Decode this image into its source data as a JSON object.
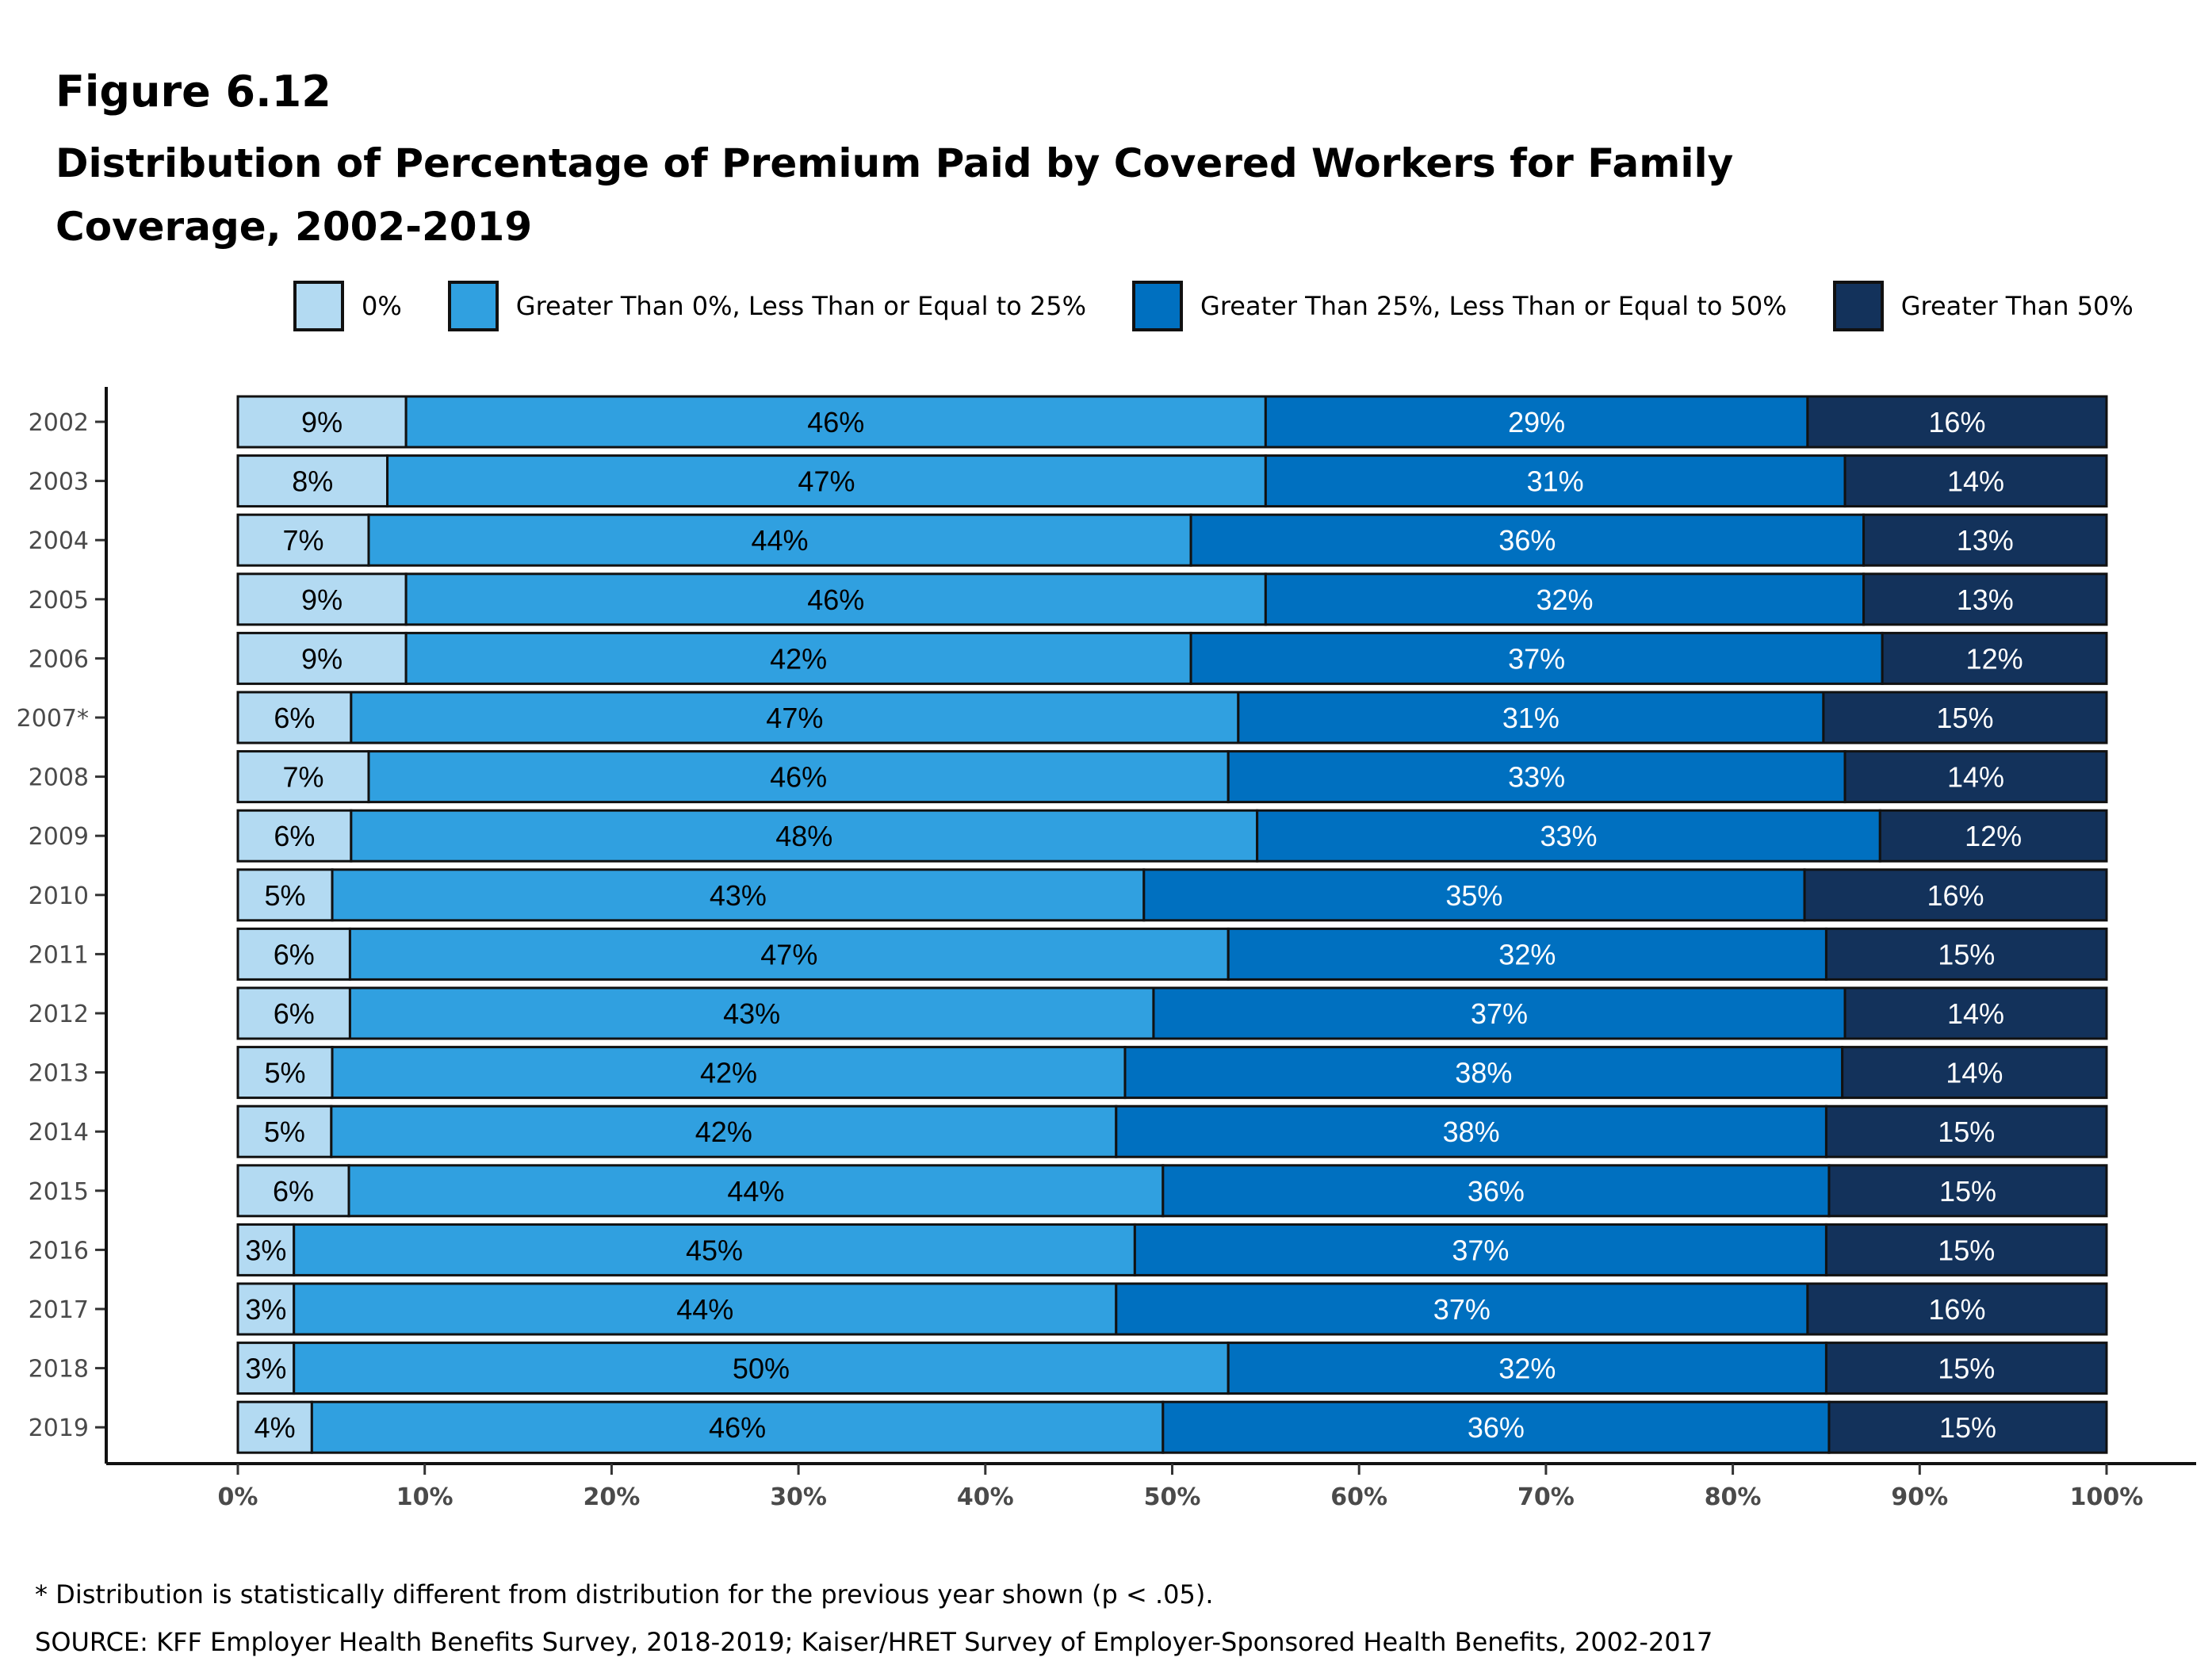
{
  "figure_number": "Figure 6.12",
  "chart_data": {
    "type": "bar",
    "orientation": "horizontal",
    "stacked": true,
    "title": "Distribution of Percentage of Premium Paid by Covered Workers for Family Coverage, 2002-2019",
    "categories": [
      "2002",
      "2003",
      "2004",
      "2005",
      "2006",
      "2007*",
      "2008",
      "2009",
      "2010",
      "2011",
      "2012",
      "2013",
      "2014",
      "2015",
      "2016",
      "2017",
      "2018",
      "2019"
    ],
    "series": [
      {
        "name": "0%",
        "color": "#b3daf2",
        "text_color": "#000000",
        "values": [
          9,
          8,
          7,
          9,
          9,
          6,
          7,
          6,
          5,
          6,
          6,
          5,
          5,
          6,
          3,
          3,
          3,
          4
        ],
        "labels": [
          "9%",
          "8%",
          "7%",
          "9%",
          "9%",
          "6%",
          "7%",
          "6%",
          "5%",
          "6%",
          "6%",
          "5%",
          "5%",
          "6%",
          "3%",
          "3%",
          "3%",
          "4%"
        ]
      },
      {
        "name": "Greater Than 0%, Less Than or Equal to 25%",
        "color": "#30a0e0",
        "text_color": "#000000",
        "values": [
          46,
          47,
          44,
          46,
          42,
          47,
          46,
          48,
          43,
          47,
          43,
          42,
          42,
          44,
          45,
          44,
          50,
          46
        ],
        "labels": [
          "46%",
          "47%",
          "44%",
          "46%",
          "42%",
          "47%",
          "46%",
          "48%",
          "43%",
          "47%",
          "43%",
          "42%",
          "42%",
          "44%",
          "45%",
          "44%",
          "50%",
          "46%"
        ]
      },
      {
        "name": "Greater Than 25%, Less Than or Equal to 50%",
        "color": "#0070c0",
        "text_color": "#ffffff",
        "values": [
          29,
          31,
          36,
          32,
          37,
          31,
          33,
          33,
          35,
          32,
          37,
          38,
          38,
          36,
          37,
          37,
          32,
          36
        ],
        "labels": [
          "29%",
          "31%",
          "36%",
          "32%",
          "37%",
          "31%",
          "33%",
          "33%",
          "35%",
          "32%",
          "37%",
          "38%",
          "38%",
          "36%",
          "37%",
          "37%",
          "32%",
          "36%"
        ]
      },
      {
        "name": "Greater Than 50%",
        "color": "#13325b",
        "text_color": "#ffffff",
        "values": [
          16,
          14,
          13,
          13,
          12,
          15,
          14,
          12,
          16,
          15,
          14,
          14,
          15,
          15,
          15,
          16,
          15,
          15
        ],
        "labels": [
          "16%",
          "14%",
          "13%",
          "13%",
          "12%",
          "15%",
          "14%",
          "12%",
          "16%",
          "15%",
          "14%",
          "14%",
          "15%",
          "15%",
          "15%",
          "16%",
          "15%",
          "15%"
        ]
      }
    ],
    "xlim": [
      0,
      100
    ],
    "x_ticks": [
      0,
      10,
      20,
      30,
      40,
      50,
      60,
      70,
      80,
      90,
      100
    ],
    "x_tick_labels": [
      "0%",
      "10%",
      "20%",
      "30%",
      "40%",
      "50%",
      "60%",
      "70%",
      "80%",
      "90%",
      "100%"
    ],
    "xlabel": "",
    "ylabel": "",
    "grid": false,
    "legend_position": "top"
  },
  "footnotes": {
    "note": "* Distribution is statistically different from distribution for the previous year shown (p < .05).",
    "source": "SOURCE: KFF Employer Health Benefits Survey, 2018-2019; Kaiser/HRET Survey of Employer-Sponsored Health Benefits, 2002-2017"
  }
}
